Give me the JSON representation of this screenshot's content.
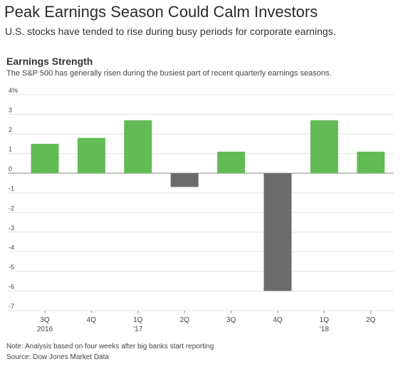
{
  "header": {
    "headline": "Peak Earnings Season Could Calm Investors",
    "dek": "U.S. stocks have tended to rise during busy periods for corporate earnings."
  },
  "chart_data": {
    "type": "bar",
    "title": "Earnings Strength",
    "subtitle": "The S&P 500 has generally risen during the busiest part of recent quarterly earnings seasons.",
    "categories": [
      "3Q",
      "4Q",
      "1Q",
      "2Q",
      "3Q",
      "4Q",
      "1Q",
      "2Q"
    ],
    "year_labels": [
      "2016",
      "",
      "'17",
      "",
      "",
      "",
      "'18",
      ""
    ],
    "values": [
      1.5,
      1.8,
      2.7,
      -0.7,
      1.1,
      -6.0,
      2.7,
      1.1
    ],
    "ylim": [
      -7,
      4
    ],
    "yticks": [
      4,
      3,
      2,
      1,
      0,
      -1,
      -2,
      -3,
      -4,
      -5,
      -6,
      -7
    ],
    "ytick_labels": [
      "4%",
      "3",
      "2",
      "1",
      "0",
      "-1",
      "-2",
      "-3",
      "-4",
      "-5",
      "-6",
      "-7"
    ],
    "grid": true,
    "colors": {
      "positive": "#63bb55",
      "negative": "#6b6b6b",
      "grid": "#e3e3e3",
      "zero": "#888888"
    }
  },
  "footer": {
    "note": "Note: Analysis based on four weeks after big banks start reporting",
    "source": "Source: Dow Jones Market Data"
  }
}
